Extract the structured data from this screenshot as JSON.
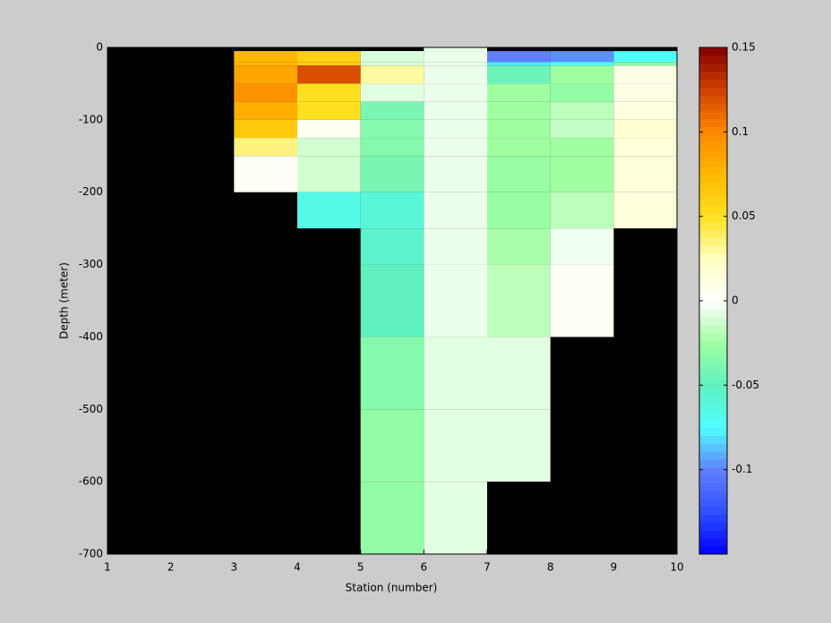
{
  "chart_data": {
    "type": "heatmap",
    "xlabel": "Station (number)",
    "ylabel": "Depth (meter)",
    "x": [
      1,
      2,
      3,
      4,
      5,
      6,
      7,
      8,
      9,
      10
    ],
    "y": [
      0,
      -5,
      -20,
      -25,
      -50,
      -75,
      -100,
      -125,
      -150,
      -200,
      -250,
      -300,
      -400,
      -500,
      -600,
      -700
    ],
    "z": [
      [
        null,
        null,
        null,
        null,
        null,
        -0.005,
        null,
        null,
        null
      ],
      [
        null,
        null,
        0.075,
        0.06,
        -0.01,
        -0.005,
        -0.1,
        -0.097,
        -0.075
      ],
      [
        null,
        null,
        0.075,
        0.06,
        -0.01,
        -0.005,
        -0.08,
        -0.075,
        -0.035
      ],
      [
        null,
        null,
        0.085,
        0.12,
        0.03,
        -0.005,
        -0.045,
        -0.025,
        0.01
      ],
      [
        null,
        null,
        0.095,
        0.05,
        -0.008,
        -0.005,
        -0.025,
        -0.03,
        0.01
      ],
      [
        null,
        null,
        0.08,
        0.05,
        -0.04,
        -0.005,
        -0.025,
        -0.018,
        0.012
      ],
      [
        null,
        null,
        0.065,
        0.005,
        -0.035,
        -0.005,
        -0.025,
        -0.015,
        0.018
      ],
      [
        null,
        null,
        0.035,
        -0.012,
        -0.035,
        -0.005,
        -0.025,
        -0.025,
        0.015
      ],
      [
        null,
        null,
        0.004,
        -0.012,
        -0.04,
        -0.005,
        -0.028,
        -0.025,
        0.015
      ],
      [
        null,
        null,
        null,
        -0.065,
        -0.06,
        -0.005,
        -0.028,
        -0.018,
        0.015
      ],
      [
        null,
        null,
        null,
        null,
        -0.055,
        -0.005,
        -0.022,
        -0.004,
        null
      ],
      [
        null,
        null,
        null,
        null,
        -0.05,
        -0.005,
        -0.018,
        0.004,
        null
      ],
      [
        null,
        null,
        null,
        null,
        -0.035,
        -0.008,
        -0.008,
        null,
        null
      ],
      [
        null,
        null,
        null,
        null,
        -0.03,
        -0.008,
        -0.008,
        null,
        null
      ],
      [
        null,
        null,
        null,
        null,
        -0.03,
        -0.008,
        null,
        null,
        null
      ]
    ],
    "xlim": [
      1,
      10
    ],
    "xticks": [
      1,
      2,
      3,
      4,
      5,
      6,
      7,
      8,
      9,
      10
    ],
    "ylim": [
      -700,
      0
    ],
    "yticks": [
      0,
      -100,
      -200,
      -300,
      -400,
      -500,
      -600,
      -700
    ],
    "clim": [
      -0.15,
      0.15
    ],
    "cticks": [
      0.15,
      0.1,
      0.05,
      0,
      -0.05,
      -0.1
    ],
    "colormap": [
      "#0000ff",
      "#3050ff",
      "#6080ff",
      "#50ffff",
      "#60f0c0",
      "#a0ffa0",
      "#ffffff",
      "#ffffc0",
      "#ffe020",
      "#ffb800",
      "#ff8800",
      "#d04000",
      "#800000"
    ],
    "missing_color": "#000000",
    "colorbar_levels": 64
  }
}
